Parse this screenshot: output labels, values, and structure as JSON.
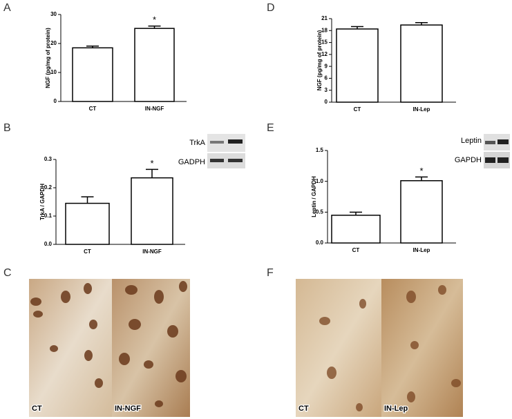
{
  "chart_data": [
    {
      "type": "bar",
      "panel": "A",
      "ylabel": "NGF (pg/mg of protein)",
      "categories": [
        "CT",
        "IN-NGF"
      ],
      "values": [
        18.5,
        25.2
      ],
      "errors": [
        0.6,
        0.8
      ],
      "color": "#ffffff",
      "ylim": [
        0,
        30
      ],
      "yticks": [
        0,
        10,
        20,
        30
      ],
      "annotation": "*",
      "annotation_category": "IN-NGF"
    },
    {
      "type": "bar",
      "panel": "D",
      "ylabel": "NGF (pg/mg of protein)",
      "categories": [
        "CT",
        "IN-Lep"
      ],
      "values": [
        18.4,
        19.4
      ],
      "errors": [
        0.6,
        0.6
      ],
      "color": "#ffffff",
      "ylim": [
        0,
        21
      ],
      "yticks": [
        0,
        3,
        6,
        9,
        12,
        15,
        18,
        21
      ]
    },
    {
      "type": "bar",
      "panel": "B",
      "ylabel": "TrkA / GAPDH",
      "categories": [
        "CT",
        "IN-NGF"
      ],
      "values": [
        0.145,
        0.235
      ],
      "errors": [
        0.023,
        0.03
      ],
      "color": "#ffffff",
      "ylim": [
        0,
        0.3
      ],
      "yticks": [
        {
          "value": 0,
          "label": "0.0"
        },
        0.1,
        0.2,
        0.3
      ],
      "annotation": "*",
      "annotation_category": "IN-NGF",
      "blot_labels": [
        "TrkA",
        "GADPH"
      ]
    },
    {
      "type": "bar",
      "panel": "E",
      "ylabel": "Leptin / GAPDH",
      "categories": [
        "CT",
        "IN-Lep"
      ],
      "values": [
        0.45,
        1.01
      ],
      "errors": [
        0.05,
        0.06
      ],
      "color": "#ffffff",
      "ylim": [
        0,
        1.5
      ],
      "yticks": [
        {
          "value": 0,
          "label": "0.0"
        },
        0.5,
        {
          "value": 1,
          "label": "1.0"
        },
        1.5
      ],
      "annotation": "*",
      "annotation_category": "IN-Lep",
      "blot_labels": [
        "Leptin",
        "GAPDH"
      ]
    }
  ],
  "micrographs": [
    {
      "panel": "C",
      "labels": [
        "CT",
        "IN-NGF"
      ]
    },
    {
      "panel": "F",
      "labels": [
        "CT",
        "IN-Lep"
      ]
    }
  ]
}
